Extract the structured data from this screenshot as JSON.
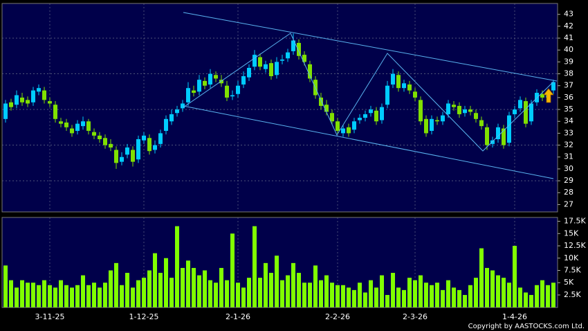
{
  "chart_data": [
    {
      "type": "candlestick",
      "up_color": "#00ccff",
      "down_color": "#80e000",
      "open": [
        34.2,
        35.6,
        35.4,
        36.0,
        35.8,
        35.6,
        36.5,
        36.6,
        35.7,
        35.4,
        34.0,
        33.9,
        33.4,
        33.2,
        33.6,
        34.0,
        33.1,
        32.8,
        32.6,
        32.1,
        31.6,
        30.6,
        31.2,
        31.6,
        30.8,
        32.4,
        32.6,
        31.6,
        32.1,
        33.2,
        34.0,
        34.7,
        35.1,
        35.6,
        36.6,
        36.5,
        37.4,
        37.1,
        37.9,
        37.5,
        37.0,
        36.1,
        36.3,
        37.1,
        37.7,
        38.6,
        39.4,
        38.4,
        38.9,
        37.9,
        39.1,
        39.3,
        39.9,
        40.6,
        39.6,
        38.8,
        37.5,
        36.0,
        35.4,
        34.7,
        34.0,
        33.0,
        33.5,
        33.3,
        34.1,
        34.3,
        34.7,
        34.9,
        34.1,
        35.4,
        37.1,
        37.9,
        36.8,
        37.1,
        36.5,
        35.8,
        34.2,
        33.2,
        34.1,
        34.0,
        34.6,
        35.4,
        35.3,
        34.7,
        35.0,
        34.7,
        34.1,
        33.5,
        32.1,
        32.5,
        33.4,
        32.2,
        34.6,
        35.1,
        35.7,
        34.0,
        35.6,
        36.3,
        36.0,
        36.6
      ],
      "high": [
        35.8,
        35.9,
        36.6,
        36.4,
        36.1,
        36.9,
        37.1,
        36.9,
        36.0,
        35.7,
        34.3,
        34.2,
        33.7,
        34.1,
        34.4,
        34.2,
        33.4,
        33.1,
        32.9,
        32.5,
        31.9,
        31.4,
        32.1,
        31.9,
        32.8,
        33.1,
        32.9,
        32.4,
        33.3,
        34.5,
        35.0,
        35.3,
        35.8,
        37.3,
        37.0,
        37.9,
        37.7,
        38.4,
        38.2,
        37.9,
        37.4,
        36.6,
        37.4,
        38.2,
        38.8,
        40.0,
        39.7,
        39.1,
        39.2,
        39.4,
        39.6,
        40.1,
        41.4,
        40.9,
        39.9,
        39.1,
        37.8,
        36.4,
        35.8,
        35.0,
        34.3,
        33.7,
        33.8,
        34.3,
        34.6,
        34.9,
        35.3,
        35.2,
        35.5,
        37.4,
        38.4,
        38.2,
        37.5,
        37.4,
        36.8,
        36.1,
        34.5,
        34.5,
        34.4,
        34.8,
        35.8,
        35.7,
        35.6,
        35.3,
        35.3,
        35.0,
        34.4,
        33.8,
        32.7,
        33.8,
        33.7,
        34.8,
        35.3,
        36.1,
        36.0,
        35.8,
        36.7,
        36.6,
        36.7,
        37.5
      ],
      "low": [
        33.9,
        34.9,
        35.1,
        35.3,
        35.2,
        35.3,
        36.2,
        35.5,
        35.2,
        33.9,
        33.5,
        33.2,
        32.7,
        32.9,
        33.3,
        32.9,
        32.5,
        32.2,
        31.7,
        31.5,
        30.0,
        30.3,
        30.9,
        30.2,
        30.5,
        32.1,
        31.2,
        31.3,
        31.8,
        32.9,
        33.7,
        34.4,
        34.8,
        35.3,
        36.1,
        36.2,
        36.7,
        36.8,
        37.3,
        36.9,
        35.7,
        35.8,
        36.0,
        36.8,
        37.4,
        38.3,
        38.3,
        38.1,
        37.5,
        37.6,
        38.8,
        39.0,
        39.6,
        39.2,
        38.7,
        37.3,
        35.9,
        35.0,
        34.5,
        33.7,
        32.9,
        32.7,
        32.7,
        33.0,
        33.8,
        34.0,
        34.4,
        33.7,
        33.8,
        35.1,
        36.8,
        36.5,
        36.5,
        36.3,
        35.7,
        33.7,
        32.7,
        32.9,
        33.7,
        33.7,
        34.3,
        34.9,
        34.3,
        34.4,
        34.5,
        33.9,
        33.3,
        31.6,
        31.8,
        32.2,
        31.7,
        31.9,
        34.3,
        34.8,
        33.5,
        33.7,
        35.3,
        35.7,
        35.7,
        36.3
      ],
      "close": [
        35.5,
        35.2,
        36.2,
        35.6,
        35.5,
        36.6,
        36.8,
        35.8,
        35.5,
        34.2,
        33.8,
        33.5,
        33.0,
        33.8,
        34.0,
        33.2,
        32.8,
        32.5,
        32.0,
        31.8,
        30.5,
        31.0,
        31.8,
        30.6,
        32.5,
        32.8,
        31.5,
        32.0,
        33.0,
        34.2,
        34.6,
        35.0,
        35.5,
        36.8,
        36.4,
        37.5,
        37.0,
        38.0,
        37.6,
        37.2,
        36.0,
        36.2,
        37.0,
        37.8,
        38.5,
        39.6,
        38.6,
        38.8,
        37.8,
        39.0,
        39.2,
        39.8,
        40.8,
        39.5,
        39.0,
        37.6,
        36.2,
        35.3,
        34.8,
        34.0,
        33.2,
        33.4,
        33.0,
        34.0,
        34.3,
        34.6,
        35.0,
        34.0,
        35.2,
        37.0,
        38.0,
        36.8,
        37.2,
        36.6,
        36.0,
        34.0,
        33.0,
        34.2,
        34.0,
        34.5,
        35.5,
        35.2,
        34.6,
        35.0,
        34.8,
        34.2,
        33.6,
        32.0,
        32.4,
        33.5,
        32.0,
        34.5,
        35.0,
        35.8,
        33.8,
        35.5,
        36.4,
        36.0,
        36.4,
        37.3
      ],
      "ylim": [
        26.5,
        43.8
      ],
      "yticks": [
        27,
        28,
        29,
        30,
        31,
        32,
        33,
        34,
        35,
        36,
        37,
        38,
        39,
        40,
        41,
        42,
        43
      ],
      "grid": true
    },
    {
      "type": "bar",
      "color": "#80ff00",
      "categories": [
        null,
        null,
        null,
        null,
        null,
        null,
        null,
        null,
        "3-11-25",
        null,
        null,
        null,
        null,
        null,
        null,
        null,
        null,
        null,
        null,
        null,
        null,
        null,
        null,
        null,
        null,
        "1-12-25",
        null,
        null,
        null,
        null,
        null,
        null,
        null,
        null,
        null,
        null,
        null,
        null,
        null,
        null,
        null,
        null,
        "2-1-26",
        null,
        null,
        null,
        null,
        null,
        null,
        null,
        null,
        null,
        null,
        null,
        null,
        null,
        null,
        null,
        null,
        null,
        "2-2-26",
        null,
        null,
        null,
        null,
        null,
        null,
        null,
        null,
        null,
        null,
        null,
        null,
        null,
        "2-3-26",
        null,
        null,
        null,
        null,
        null,
        null,
        null,
        null,
        null,
        null,
        null,
        null,
        null,
        null,
        null,
        null,
        null,
        "1-4-26",
        null,
        null,
        null,
        null,
        null,
        null,
        null
      ],
      "values": [
        8500,
        5500,
        4000,
        5500,
        5000,
        5000,
        4500,
        5500,
        4500,
        4000,
        5500,
        4500,
        4000,
        4500,
        6500,
        4500,
        5000,
        4000,
        5000,
        7500,
        9000,
        4500,
        7000,
        4000,
        5500,
        6000,
        7500,
        11000,
        7000,
        10000,
        6000,
        16500,
        8000,
        9500,
        8000,
        6500,
        7500,
        5500,
        5000,
        8000,
        5500,
        15000,
        5000,
        4000,
        6000,
        16500,
        6000,
        9000,
        7000,
        10500,
        5500,
        6500,
        9000,
        7000,
        5000,
        5000,
        8500,
        5500,
        6500,
        5000,
        4500,
        4500,
        4000,
        3500,
        5000,
        3000,
        5500,
        4000,
        6500,
        2500,
        7000,
        4000,
        3500,
        6000,
        5500,
        6500,
        5000,
        4500,
        5000,
        3500,
        5500,
        4000,
        3500,
        2500,
        4500,
        6000,
        12000,
        8000,
        7500,
        6500,
        6000,
        5000,
        12500,
        4000,
        3000,
        2500,
        4500,
        5500,
        4500,
        5000
      ],
      "ylim": [
        0,
        18000
      ],
      "yticks": [
        {
          "value": 2500,
          "label": "2.5K"
        },
        {
          "value": 5000,
          "label": "5K"
        },
        {
          "value": 7500,
          "label": "7.5K"
        },
        {
          "value": 10000,
          "label": "10K"
        },
        {
          "value": 12500,
          "label": "12.5K"
        },
        {
          "value": 15000,
          "label": "15K"
        },
        {
          "value": 17500,
          "label": "17.5K"
        }
      ],
      "copyright": "Copyright by AASTOCKS.com Ltd."
    }
  ]
}
